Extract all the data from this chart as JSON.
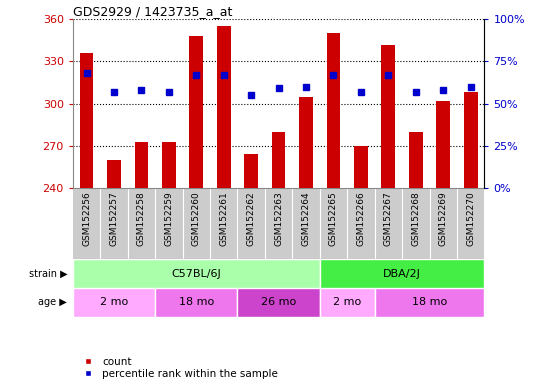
{
  "title": "GDS2929 / 1423735_a_at",
  "samples": [
    "GSM152256",
    "GSM152257",
    "GSM152258",
    "GSM152259",
    "GSM152260",
    "GSM152261",
    "GSM152262",
    "GSM152263",
    "GSM152264",
    "GSM152265",
    "GSM152266",
    "GSM152267",
    "GSM152268",
    "GSM152269",
    "GSM152270"
  ],
  "counts": [
    336,
    260,
    273,
    273,
    348,
    355,
    264,
    280,
    305,
    350,
    270,
    342,
    280,
    302,
    308
  ],
  "percentile_ranks": [
    68,
    57,
    58,
    57,
    67,
    67,
    55,
    59,
    60,
    67,
    57,
    67,
    57,
    58,
    60
  ],
  "ymin": 240,
  "ymax": 360,
  "yticks": [
    240,
    270,
    300,
    330,
    360
  ],
  "y2min": 0,
  "y2max": 100,
  "y2ticks": [
    0,
    25,
    50,
    75,
    100
  ],
  "y2ticklabels": [
    "0%",
    "25%",
    "50%",
    "75%",
    "100%"
  ],
  "bar_color": "#cc0000",
  "dot_color": "#0000cc",
  "strain_groups": [
    {
      "label": "C57BL/6J",
      "start": 0,
      "end": 9,
      "color": "#aaffaa"
    },
    {
      "label": "DBA/2J",
      "start": 9,
      "end": 15,
      "color": "#44ee44"
    }
  ],
  "age_groups": [
    {
      "label": "2 mo",
      "start": 0,
      "end": 3,
      "color": "#ffaaff"
    },
    {
      "label": "18 mo",
      "start": 3,
      "end": 6,
      "color": "#ee77ee"
    },
    {
      "label": "26 mo",
      "start": 6,
      "end": 9,
      "color": "#cc44cc"
    },
    {
      "label": "2 mo",
      "start": 9,
      "end": 11,
      "color": "#ffaaff"
    },
    {
      "label": "18 mo",
      "start": 11,
      "end": 15,
      "color": "#ee77ee"
    }
  ],
  "legend_count_label": "count",
  "legend_pct_label": "percentile rank within the sample",
  "label_strain": "strain",
  "label_age": "age",
  "bar_color_left": "#cc0000",
  "bar_color_right": "#0000cc",
  "tick_area_bg": "#cccccc",
  "grid_color": "#000000",
  "fig_bg": "#ffffff"
}
